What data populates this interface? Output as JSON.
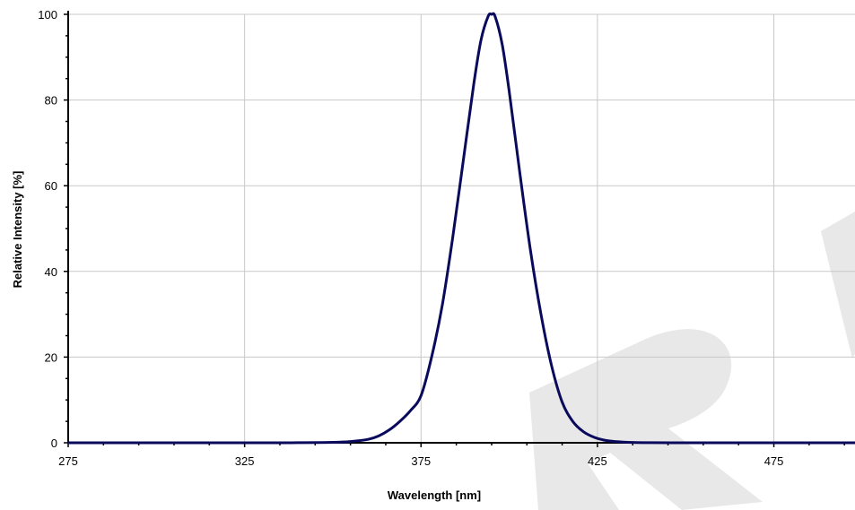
{
  "chart_data": {
    "type": "line",
    "title": "",
    "xlabel": "Wavelength [nm]",
    "ylabel": "Relative Intensity [%]",
    "xlim": [
      275,
      498
    ],
    "ylim": [
      0,
      100
    ],
    "x_ticks": [
      275,
      325,
      375,
      425,
      475
    ],
    "y_ticks": [
      0,
      20,
      40,
      60,
      80,
      100
    ],
    "grid": true,
    "line_color": "#0a0a5c",
    "watermark_color": "#e6e6e6",
    "series": [
      {
        "x": [
          275,
          330,
          340,
          350,
          355,
          360,
          363,
          366,
          369,
          372,
          375,
          378,
          381,
          384,
          387,
          390,
          392,
          394,
          395,
          396,
          398,
          400,
          403,
          406,
          409,
          412,
          415,
          418,
          421,
          424,
          427,
          430,
          435,
          440,
          450,
          460,
          498
        ],
        "y": [
          0,
          0,
          0.02,
          0.1,
          0.3,
          0.8,
          1.6,
          3.0,
          5.0,
          7.5,
          11,
          20,
          32,
          48,
          66,
          84,
          94,
          99.5,
          100,
          99.5,
          93,
          82,
          63,
          45,
          30,
          18,
          9.5,
          5.0,
          2.6,
          1.3,
          0.6,
          0.3,
          0.08,
          0.02,
          0,
          0,
          0
        ]
      }
    ]
  }
}
